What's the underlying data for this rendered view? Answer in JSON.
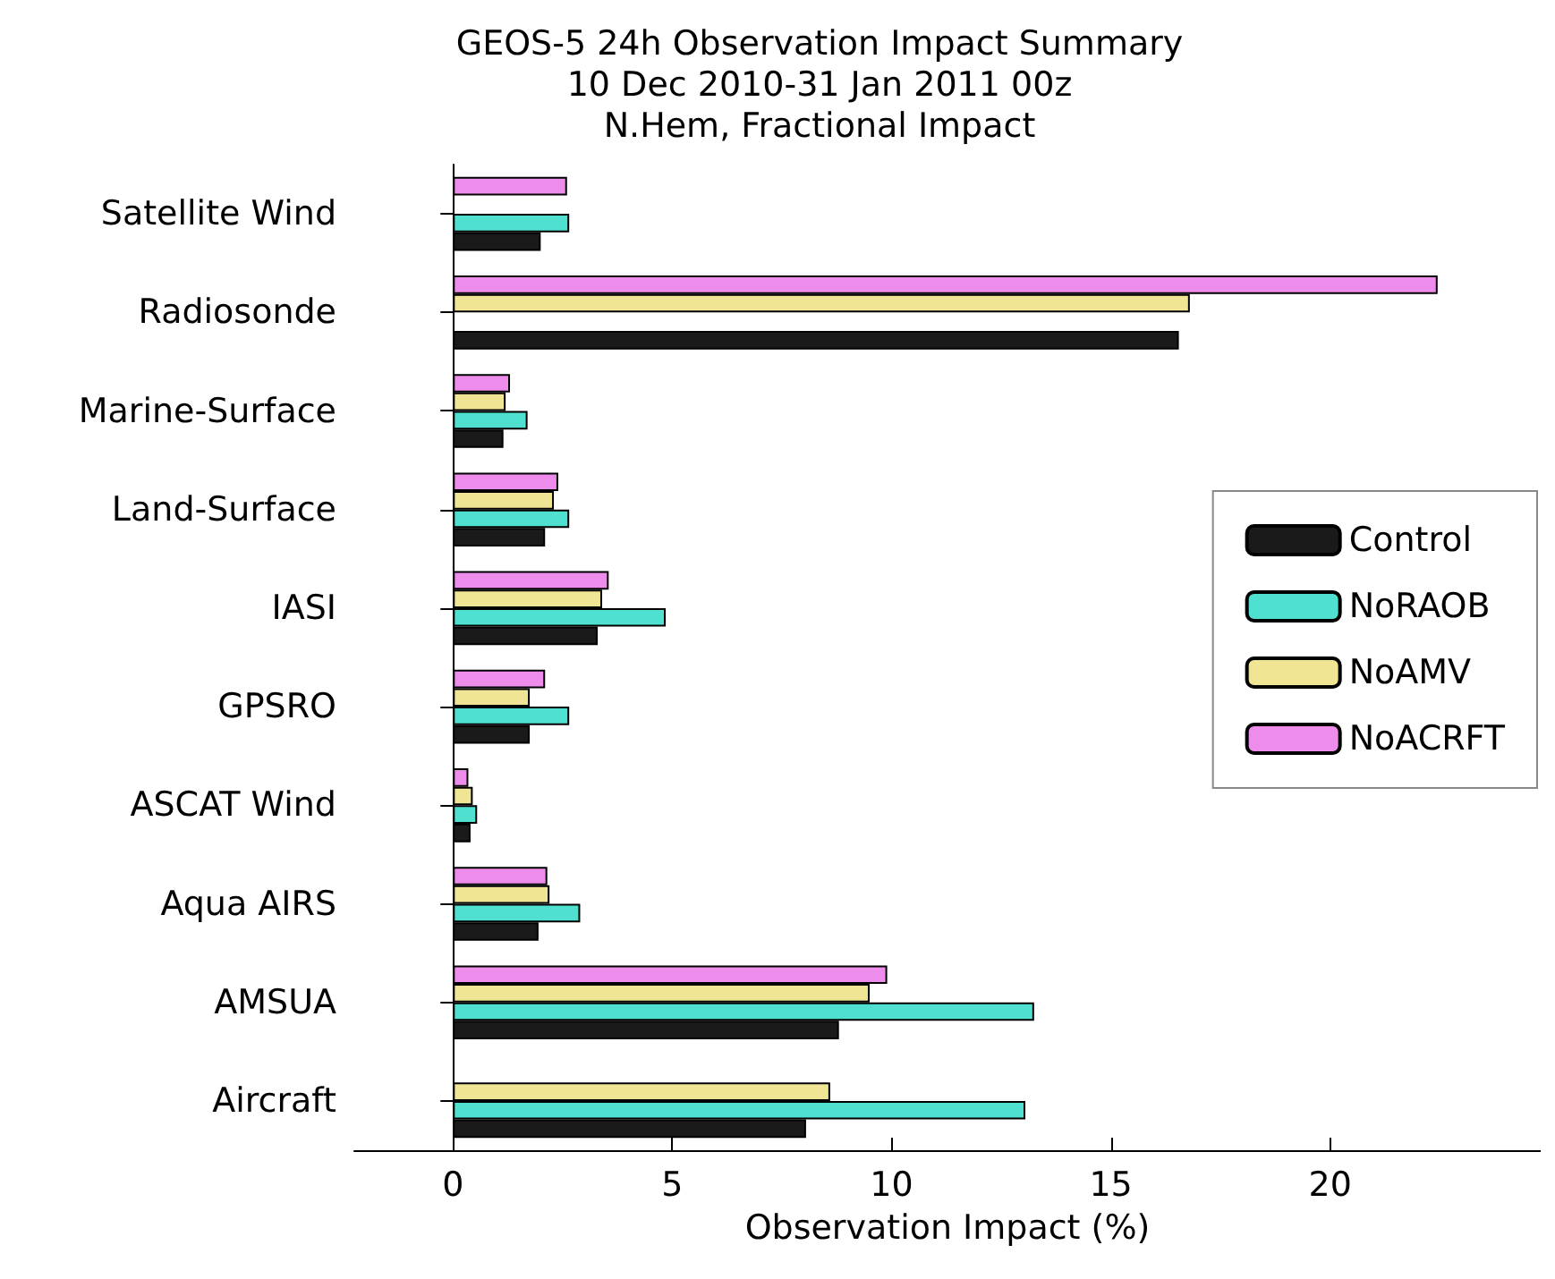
{
  "chart_data": {
    "type": "bar",
    "orientation": "horizontal",
    "title": "GEOS-5 24h Observation Impact Summary\n10 Dec 2010-31 Jan 2011 00z\nN.Hem, Fractional Impact",
    "xlabel": "Observation Impact (%)",
    "categories": [
      "Satellite Wind",
      "Radiosonde",
      "Marine-Surface",
      "Land-Surface",
      "IASI",
      "GPSRO",
      "ASCAT Wind",
      "Aqua AIRS",
      "AMSUA",
      "Aircraft"
    ],
    "series": [
      {
        "name": "Control",
        "color": "#1a1a1a",
        "values": [
          2.0,
          16.55,
          1.15,
          2.1,
          3.3,
          1.75,
          0.4,
          1.95,
          8.8,
          8.05
        ]
      },
      {
        "name": "NoRAOB",
        "color": "#4fe0cf",
        "values": [
          2.65,
          null,
          1.7,
          2.65,
          4.85,
          2.65,
          0.55,
          2.9,
          13.25,
          13.05
        ]
      },
      {
        "name": "NoAMV",
        "color": "#efe595",
        "values": [
          null,
          16.8,
          1.2,
          2.3,
          3.4,
          1.75,
          0.45,
          2.2,
          9.5,
          8.6
        ]
      },
      {
        "name": "NoACRFT",
        "color": "#ee8cec",
        "values": [
          2.6,
          22.45,
          1.3,
          2.4,
          3.55,
          2.1,
          0.35,
          2.15,
          9.9,
          null
        ]
      }
    ],
    "xlim": [
      -2.25,
      24.8
    ],
    "xticks": [
      0,
      5,
      10,
      15,
      20
    ],
    "ref_lines": [
      {
        "axis": "x",
        "value": 0,
        "color": "#000000"
      }
    ],
    "legend": "right"
  }
}
